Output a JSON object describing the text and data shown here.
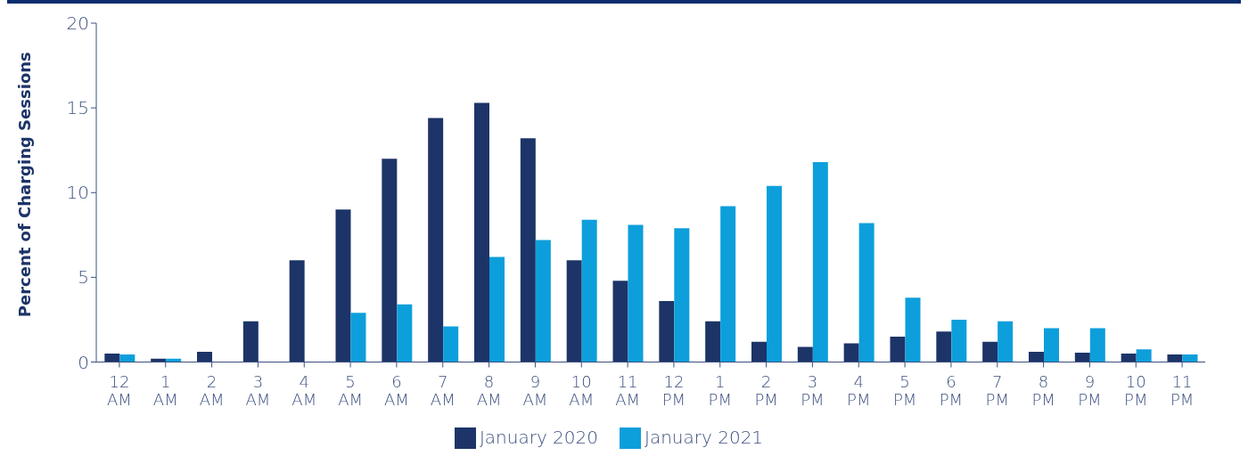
{
  "chart_data": {
    "type": "bar",
    "ylabel": "Percent of Charging Sessions",
    "categories": [
      "12 AM",
      "1 AM",
      "2 AM",
      "3 AM",
      "4 AM",
      "5 AM",
      "6 AM",
      "7 AM",
      "8 AM",
      "9 AM",
      "10 AM",
      "11 AM",
      "12 PM",
      "1 PM",
      "2 PM",
      "3 PM",
      "4 PM",
      "5 PM",
      "6 PM",
      "7 PM",
      "8 PM",
      "9 PM",
      "10 PM",
      "11 PM"
    ],
    "series": [
      {
        "name": "January 2020",
        "color": "#1d3468",
        "values": [
          0.5,
          0.2,
          0.6,
          2.4,
          6.0,
          9.0,
          12.0,
          14.4,
          15.3,
          13.2,
          6.0,
          4.8,
          3.6,
          2.4,
          1.2,
          0.9,
          1.1,
          1.5,
          1.8,
          1.2,
          0.6,
          0.55,
          0.5,
          0.45
        ]
      },
      {
        "name": "January 2021",
        "color": "#0d9fdb",
        "values": [
          0.45,
          0.2,
          0,
          0,
          0,
          2.9,
          3.4,
          2.1,
          6.2,
          7.2,
          8.4,
          8.1,
          7.9,
          9.2,
          10.4,
          11.8,
          8.2,
          3.8,
          2.5,
          2.4,
          2.0,
          2.0,
          0.75,
          0.45
        ]
      }
    ],
    "ylim": [
      0,
      20
    ],
    "yticks": [
      0,
      5,
      10,
      15,
      20
    ],
    "grid": false,
    "legend": "bottom"
  }
}
